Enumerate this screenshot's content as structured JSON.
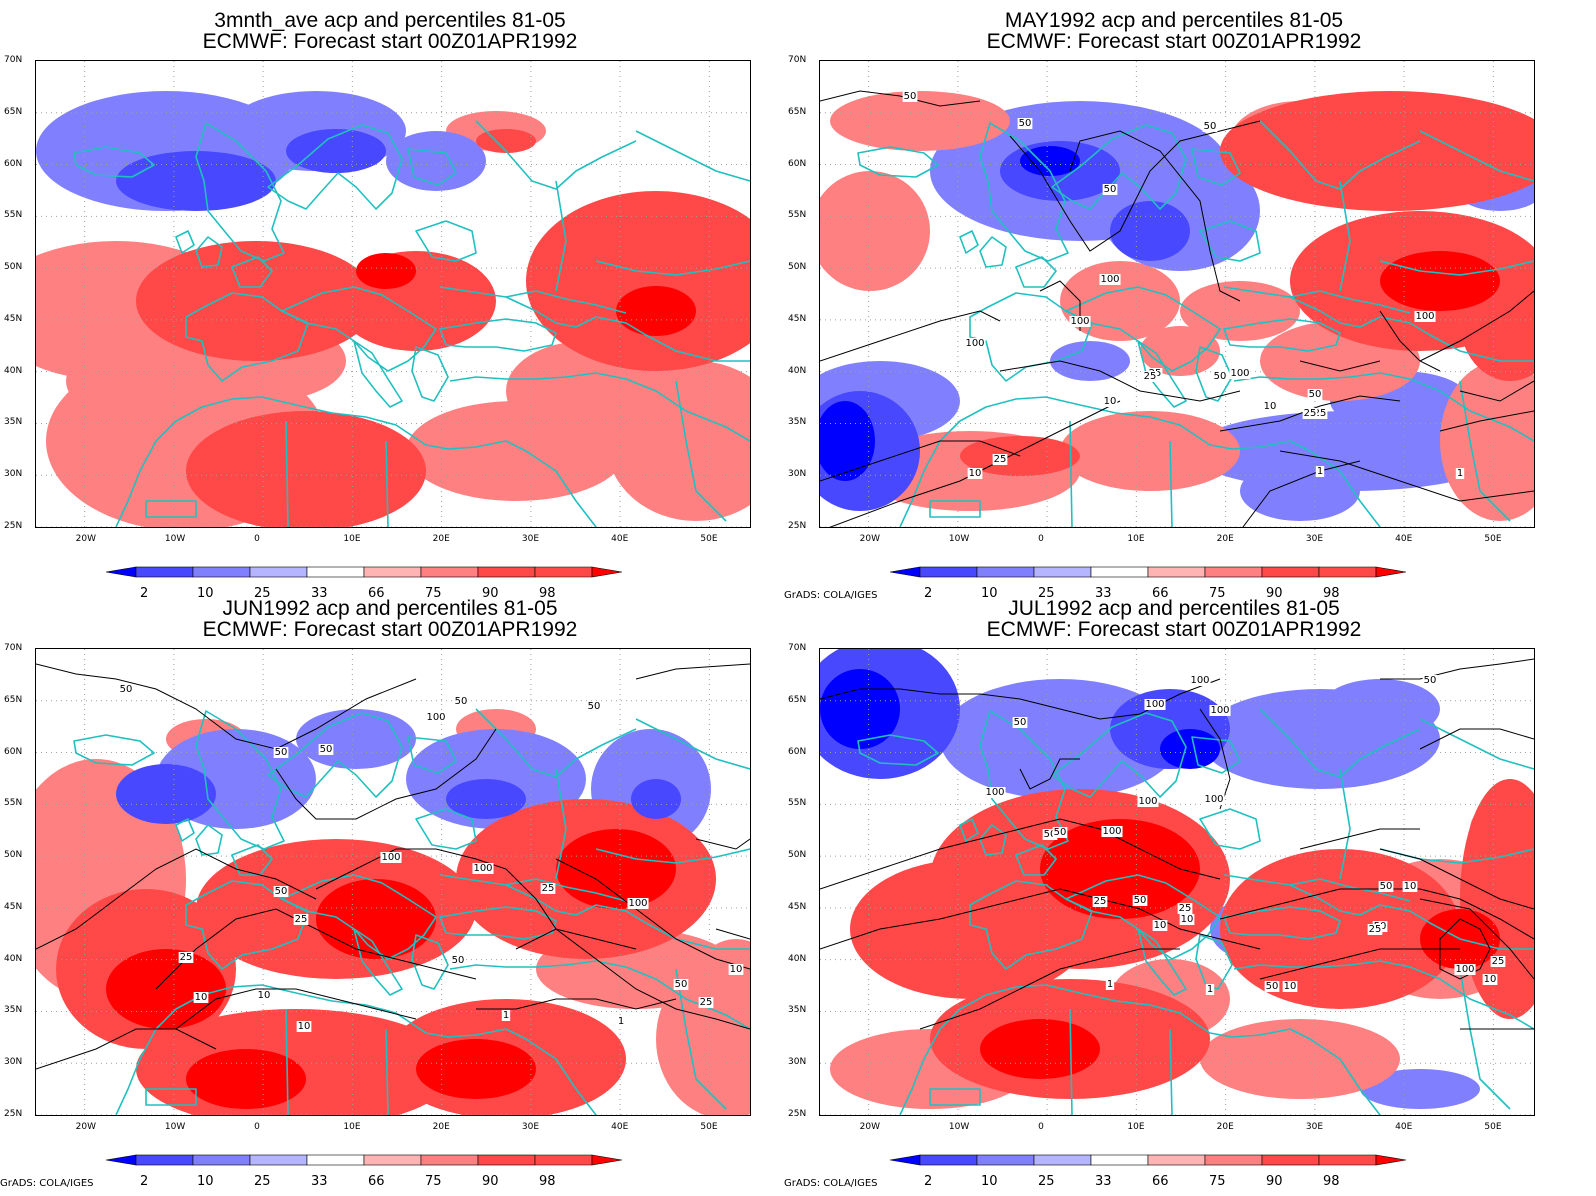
{
  "panels": [
    {
      "title_line1": "3mnth_ave acp and percentiles 81-05",
      "title_line2": "ECMWF: Forecast start 00Z01APR1992",
      "credit": "",
      "contours": []
    },
    {
      "title_line1": "MAY1992 acp and percentiles 81-05",
      "title_line2": "ECMWF: Forecast start 00Z01APR1992",
      "credit": "GrADS: COLA/IGES",
      "contours": [
        "50",
        "50",
        "50",
        "50",
        "100",
        "100",
        "100",
        "100",
        "25",
        "25",
        "10",
        "10",
        "50",
        "25",
        "1",
        "1",
        "25",
        "10",
        "50",
        "25",
        "100"
      ]
    },
    {
      "title_line1": "JUN1992 acp and percentiles 81-05",
      "title_line2": "ECMWF: Forecast start 00Z01APR1992",
      "credit": "GrADS: COLA/IGES",
      "contours": [
        "50",
        "50",
        "50",
        "100",
        "50",
        "50",
        "100",
        "100",
        "50",
        "25",
        "25",
        "25",
        "10",
        "10",
        "10",
        "50",
        "1",
        "100",
        "50",
        "25",
        "1",
        "10"
      ]
    },
    {
      "title_line1": "JUL1992 acp and percentiles 81-05",
      "title_line2": "ECMWF: Forecast start 00Z01APR1992",
      "credit": "GrADS: COLA/IGES",
      "contours": [
        "50",
        "100",
        "100",
        "50",
        "100",
        "100",
        "50",
        "50",
        "100",
        "100",
        "100",
        "50",
        "25",
        "50",
        "25",
        "10",
        "10",
        "1",
        "10",
        "50",
        "25",
        "10",
        "100",
        "50",
        "25",
        "10",
        "1"
      ]
    }
  ],
  "lat_labels": [
    "70N",
    "65N",
    "60N",
    "55N",
    "50N",
    "45N",
    "40N",
    "35N",
    "30N",
    "25N"
  ],
  "lon_labels": [
    "20W",
    "10W",
    "0",
    "10E",
    "20E",
    "30E",
    "40E",
    "50E"
  ],
  "colorbar": {
    "labels": [
      "2",
      "10",
      "25",
      "33",
      "66",
      "75",
      "90",
      "98"
    ],
    "colors": [
      "#0000ff",
      "#4848ff",
      "#8080ff",
      "#b4b4ff",
      "#ffffff",
      "#ffb4b4",
      "#ff8080",
      "#ff4848",
      "#ff0000"
    ]
  },
  "colors": {
    "coast": "#20c0c0",
    "contour": "#000000",
    "frame": "#000000"
  }
}
